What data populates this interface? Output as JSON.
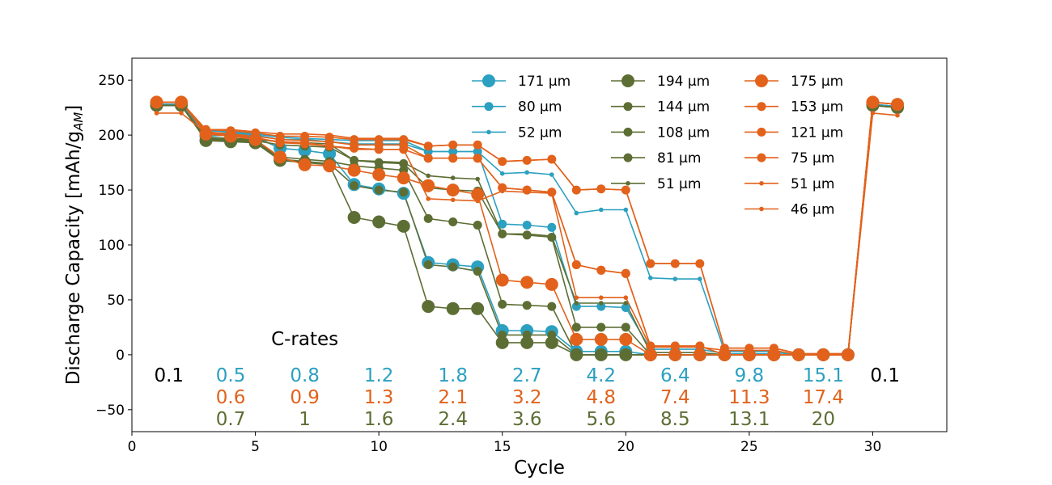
{
  "chart_data": {
    "type": "line",
    "xlabel": "Cycle",
    "ylabel": "Discharge Capacity [mAh/g",
    "ylabel_sub": "AM",
    "ylabel_close": "]",
    "xlim": [
      0,
      33
    ],
    "ylim": [
      -70,
      270
    ],
    "xticks": [
      0,
      5,
      10,
      15,
      20,
      25,
      30
    ],
    "yticks": [
      -50,
      0,
      50,
      100,
      150,
      200,
      250
    ],
    "xtick_labels": [
      "0",
      "5",
      "10",
      "15",
      "20",
      "25",
      "30"
    ],
    "ytick_labels": [
      "−50",
      "0",
      "50",
      "100",
      "150",
      "200",
      "250"
    ],
    "grid": false,
    "legend_position": "top-right",
    "x": [
      1,
      2,
      3,
      4,
      5,
      6,
      7,
      8,
      9,
      10,
      11,
      12,
      13,
      14,
      15,
      16,
      17,
      18,
      19,
      20,
      21,
      22,
      23,
      24,
      25,
      26,
      27,
      28,
      29,
      30,
      31
    ],
    "series": [
      {
        "name": "171 μm",
        "color": "#2ca0c0",
        "marker": "large",
        "values": [
          228,
          228,
          199,
          200,
          198,
          188,
          186,
          183,
          155,
          151,
          147,
          84,
          82,
          80,
          22,
          22,
          21,
          3,
          3,
          3,
          0,
          0,
          0,
          0,
          0,
          0,
          0,
          0,
          0,
          228,
          226
        ]
      },
      {
        "name": "80 μm",
        "color": "#2ca0c0",
        "marker": "medium",
        "values": [
          228,
          228,
          202,
          202,
          200,
          196,
          196,
          194,
          192,
          192,
          192,
          185,
          185,
          185,
          119,
          118,
          116,
          44,
          44,
          43,
          5,
          5,
          5,
          1,
          1,
          1,
          0,
          0,
          0,
          228,
          226
        ]
      },
      {
        "name": "52 μm",
        "color": "#2ca0c0",
        "marker": "small",
        "values": [
          228,
          228,
          204,
          203,
          201,
          198,
          197,
          196,
          195,
          195,
          195,
          185,
          185,
          185,
          165,
          166,
          164,
          129,
          132,
          132,
          70,
          69,
          69,
          3,
          3,
          3,
          0,
          0,
          0,
          228,
          226
        ]
      },
      {
        "name": "194 μm",
        "color": "#5d6e34",
        "marker": "large",
        "values": [
          227,
          227,
          195,
          194,
          193,
          177,
          175,
          173,
          125,
          121,
          117,
          44,
          42,
          42,
          11,
          11,
          11,
          0,
          0,
          0,
          0,
          0,
          0,
          0,
          0,
          0,
          0,
          0,
          0,
          227,
          225
        ]
      },
      {
        "name": "144 μm",
        "color": "#5d6e34",
        "marker": "medium",
        "values": [
          227,
          227,
          196,
          195,
          194,
          178,
          176,
          174,
          154,
          150,
          148,
          82,
          80,
          76,
          18,
          18,
          18,
          0,
          0,
          0,
          0,
          0,
          0,
          0,
          0,
          0,
          0,
          0,
          0,
          227,
          225
        ]
      },
      {
        "name": "108 μm",
        "color": "#5d6e34",
        "marker": "medium",
        "values": [
          227,
          227,
          196,
          195,
          194,
          180,
          178,
          176,
          172,
          170,
          168,
          124,
          121,
          118,
          46,
          45,
          44,
          0,
          0,
          0,
          0,
          0,
          0,
          0,
          0,
          0,
          0,
          0,
          0,
          227,
          225
        ]
      },
      {
        "name": "81 μm",
        "color": "#5d6e34",
        "marker": "medium",
        "values": [
          227,
          227,
          197,
          196,
          195,
          191,
          190,
          189,
          177,
          175,
          174,
          152,
          150,
          149,
          110,
          109,
          107,
          25,
          25,
          25,
          0,
          0,
          0,
          0,
          0,
          0,
          0,
          0,
          0,
          227,
          225
        ]
      },
      {
        "name": "51 μm",
        "color": "#5d6e34",
        "marker": "small",
        "values": [
          227,
          227,
          198,
          197,
          196,
          194,
          193,
          192,
          177,
          176,
          175,
          163,
          161,
          160,
          110,
          110,
          108,
          47,
          47,
          47,
          2,
          2,
          2,
          0,
          0,
          0,
          0,
          0,
          0,
          227,
          225
        ]
      },
      {
        "name": "175 μm",
        "color": "#e2621c",
        "marker": "large",
        "values": [
          230,
          230,
          201,
          199,
          196,
          180,
          173,
          172,
          168,
          164,
          161,
          154,
          150,
          146,
          68,
          66,
          64,
          14,
          14,
          14,
          0,
          0,
          0,
          0,
          0,
          0,
          0,
          0,
          0,
          230,
          228
        ]
      },
      {
        "name": "153 μm",
        "color": "#e2621c",
        "marker": "medium",
        "values": [
          230,
          230,
          202,
          200,
          198,
          193,
          192,
          190,
          188,
          187,
          187,
          179,
          179,
          179,
          152,
          150,
          148,
          82,
          77,
          74,
          8,
          8,
          8,
          0,
          0,
          0,
          0,
          0,
          0,
          230,
          228
        ]
      },
      {
        "name": "121 μm",
        "color": "#e2621c",
        "marker": "medium",
        "values": [
          230,
          230,
          203,
          201,
          199,
          196,
          195,
          194,
          191,
          191,
          191,
          179,
          179,
          179,
          152,
          150,
          148,
          82,
          77,
          74,
          8,
          8,
          8,
          0,
          0,
          0,
          0,
          0,
          0,
          230,
          228
        ]
      },
      {
        "name": "75 μm",
        "color": "#e2621c",
        "marker": "medium",
        "values": [
          230,
          230,
          205,
          204,
          202,
          199,
          199,
          198,
          196,
          196,
          196,
          190,
          191,
          191,
          176,
          177,
          178,
          150,
          151,
          150,
          83,
          83,
          83,
          6,
          6,
          6,
          1,
          1,
          1,
          230,
          228
        ]
      },
      {
        "name": "51 μm",
        "color": "#e2621c",
        "marker": "small",
        "values": [
          230,
          230,
          205,
          205,
          203,
          201,
          201,
          200,
          197,
          197,
          197,
          190,
          191,
          191,
          176,
          177,
          178,
          150,
          151,
          150,
          83,
          83,
          83,
          6,
          6,
          6,
          1,
          1,
          1,
          230,
          228
        ]
      },
      {
        "name": "46 μm",
        "color": "#e2621c",
        "marker": "small",
        "values": [
          220,
          220,
          202,
          200,
          197,
          194,
          193,
          190,
          187,
          187,
          187,
          142,
          141,
          140,
          149,
          148,
          147,
          52,
          52,
          52,
          7,
          7,
          7,
          4,
          4,
          4,
          0,
          0,
          0,
          220,
          218
        ]
      }
    ],
    "legend_entries": [
      {
        "label": "171 μm",
        "color": "#2ca0c0",
        "marker": "large"
      },
      {
        "label": "80 μm",
        "color": "#2ca0c0",
        "marker": "medium"
      },
      {
        "label": "52 μm",
        "color": "#2ca0c0",
        "marker": "small"
      },
      {
        "label": "194 μm",
        "color": "#5d6e34",
        "marker": "large"
      },
      {
        "label": "144 μm",
        "color": "#5d6e34",
        "marker": "medium"
      },
      {
        "label": "108 μm",
        "color": "#5d6e34",
        "marker": "medium"
      },
      {
        "label": "81 μm",
        "color": "#5d6e34",
        "marker": "medium"
      },
      {
        "label": "51 μm",
        "color": "#5d6e34",
        "marker": "small"
      },
      {
        "label": "175 μm",
        "color": "#e2621c",
        "marker": "large"
      },
      {
        "label": "153 μm",
        "color": "#e2621c",
        "marker": "medium"
      },
      {
        "label": "121 μm",
        "color": "#e2621c",
        "marker": "medium"
      },
      {
        "label": "75 μm",
        "color": "#e2621c",
        "marker": "medium"
      },
      {
        "label": "51 μm",
        "color": "#e2621c",
        "marker": "small"
      },
      {
        "label": "46 μm",
        "color": "#e2621c",
        "marker": "small"
      }
    ],
    "annotations": {
      "c_rates_title": "C-rates",
      "rows": [
        {
          "color": "#2ca0c0",
          "labels": [
            {
              "x": 4,
              "text": "0.5"
            },
            {
              "x": 7,
              "text": "0.8"
            },
            {
              "x": 10,
              "text": "1.2"
            },
            {
              "x": 13,
              "text": "1.8"
            },
            {
              "x": 16,
              "text": "2.7"
            },
            {
              "x": 19,
              "text": "4.2"
            },
            {
              "x": 22,
              "text": "6.4"
            },
            {
              "x": 25,
              "text": "9.8"
            },
            {
              "x": 28,
              "text": "15.1"
            }
          ]
        },
        {
          "color": "#e2621c",
          "labels": [
            {
              "x": 4,
              "text": "0.6"
            },
            {
              "x": 7,
              "text": "0.9"
            },
            {
              "x": 10,
              "text": "1.3"
            },
            {
              "x": 13,
              "text": "2.1"
            },
            {
              "x": 16,
              "text": "3.2"
            },
            {
              "x": 19,
              "text": "4.8"
            },
            {
              "x": 22,
              "text": "7.4"
            },
            {
              "x": 25,
              "text": "11.3"
            },
            {
              "x": 28,
              "text": "17.4"
            }
          ]
        },
        {
          "color": "#5d6e34",
          "labels": [
            {
              "x": 4,
              "text": "0.7"
            },
            {
              "x": 7,
              "text": "1"
            },
            {
              "x": 10,
              "text": "1.6"
            },
            {
              "x": 13,
              "text": "2.4"
            },
            {
              "x": 16,
              "text": "3.6"
            },
            {
              "x": 19,
              "text": "5.6"
            },
            {
              "x": 22,
              "text": "8.5"
            },
            {
              "x": 25,
              "text": "13.1"
            },
            {
              "x": 28,
              "text": "20"
            }
          ]
        }
      ],
      "black_labels": [
        {
          "x": 1.5,
          "text": "0.1"
        },
        {
          "x": 30.5,
          "text": "0.1"
        }
      ]
    }
  }
}
